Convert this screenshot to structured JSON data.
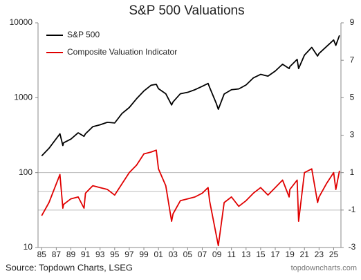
{
  "chart_data": {
    "type": "line",
    "title": "S&P 500 Valuations",
    "source": "Source: Topdown Charts, LSEG",
    "watermark": "topdowncharts.com",
    "x": [
      1985,
      1986,
      1987.5,
      1987.9,
      1988,
      1989,
      1990,
      1990.8,
      1991,
      1992,
      1993,
      1994,
      1995,
      1996,
      1997,
      1998,
      1999,
      2000,
      2000.7,
      2001,
      2002,
      2002.8,
      2003,
      2004,
      2005,
      2006,
      2007,
      2007.8,
      2008,
      2008.9,
      2009.2,
      2010,
      2011,
      2012,
      2013,
      2014,
      2015,
      2016,
      2017,
      2018,
      2018.9,
      2019,
      2020,
      2020.2,
      2021,
      2022,
      2022.8,
      2023,
      2024,
      2025,
      2025.3,
      2025.8
    ],
    "series": [
      {
        "name": "S&P 500",
        "color": "#000000",
        "values": [
          167,
          211,
          330,
          230,
          250,
          280,
          340,
          305,
          330,
          410,
          435,
          470,
          460,
          615,
          740,
          970,
          1230,
          1470,
          1510,
          1320,
          1130,
          800,
          880,
          1130,
          1180,
          1280,
          1420,
          1550,
          1380,
          850,
          700,
          1120,
          1280,
          1310,
          1480,
          1840,
          2050,
          1940,
          2270,
          2800,
          2450,
          2600,
          3250,
          2450,
          3700,
          4700,
          3600,
          3900,
          4800,
          5900,
          5000,
          6800
        ]
      },
      {
        "name": "Composite Valuation Indicator",
        "color": "#e00000",
        "axis": "y2",
        "values": [
          -1.3,
          -0.6,
          0.9,
          -0.9,
          -0.7,
          -0.4,
          -0.3,
          -0.9,
          -0.1,
          0.3,
          0.2,
          0.1,
          -0.2,
          0.4,
          1.0,
          1.4,
          2.0,
          2.1,
          2.2,
          1.2,
          0.3,
          -1.6,
          -1.2,
          -0.5,
          -0.4,
          -0.3,
          -0.1,
          0.2,
          -0.5,
          -2.3,
          -2.9,
          -0.6,
          -0.3,
          -0.8,
          -0.5,
          -0.1,
          0.2,
          -0.2,
          0.2,
          0.6,
          -0.3,
          0.1,
          0.6,
          -1.6,
          1.0,
          1.2,
          -0.6,
          -0.3,
          0.4,
          1.0,
          0.1,
          1.1
        ]
      }
    ],
    "xlim": [
      1984.5,
      2026
    ],
    "xticks": [
      {
        "value": 1985,
        "label": "85"
      },
      {
        "value": 1987,
        "label": "87"
      },
      {
        "value": 1989,
        "label": "89"
      },
      {
        "value": 1991,
        "label": "91"
      },
      {
        "value": 1993,
        "label": "93"
      },
      {
        "value": 1995,
        "label": "95"
      },
      {
        "value": 1997,
        "label": "97"
      },
      {
        "value": 1999,
        "label": "99"
      },
      {
        "value": 2001,
        "label": "01"
      },
      {
        "value": 2003,
        "label": "03"
      },
      {
        "value": 2005,
        "label": "05"
      },
      {
        "value": 2007,
        "label": "07"
      },
      {
        "value": 2009,
        "label": "09"
      },
      {
        "value": 2011,
        "label": "11"
      },
      {
        "value": 2013,
        "label": "13"
      },
      {
        "value": 2015,
        "label": "15"
      },
      {
        "value": 2017,
        "label": "17"
      },
      {
        "value": 2019,
        "label": "19"
      },
      {
        "value": 2021,
        "label": "21"
      },
      {
        "value": 2023,
        "label": "23"
      },
      {
        "value": 2025,
        "label": "25"
      }
    ],
    "yscale": "log",
    "ylim": [
      10,
      10000
    ],
    "yticks": [
      10,
      100,
      1000,
      10000
    ],
    "y2lim": [
      -3,
      9
    ],
    "y2ticks": [
      -3,
      -1,
      1,
      3,
      5,
      7,
      9
    ],
    "y2_reference_lines": [
      -1,
      0,
      1
    ],
    "legend": "upper left"
  }
}
